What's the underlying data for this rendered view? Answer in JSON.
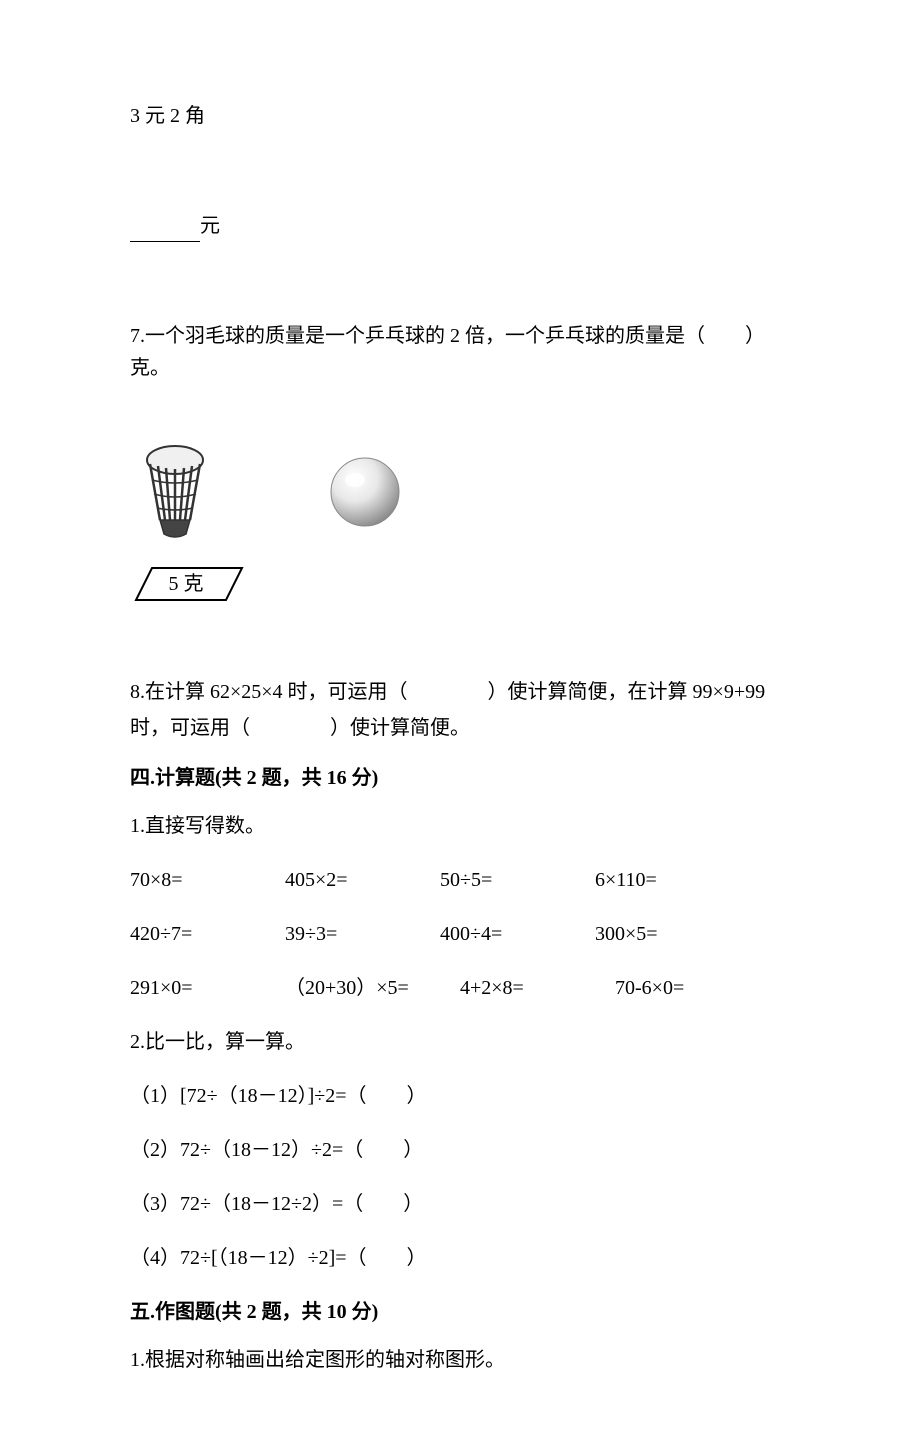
{
  "text": {
    "price_line": "3 元 2 角",
    "yuan_blank_suffix": "元",
    "q7": "7.一个羽毛球的质量是一个乒乓球的 2 倍，一个乒乓球的质量是（　　）克。",
    "weight_label": "5 克",
    "q8_line1": "8.在计算 62×25×4 时，可运用（　　　　）使计算简便，在计算 99×9+99",
    "q8_line2": "时，可运用（　　　　）使计算简便。",
    "sec4_heading": "四.计算题(共 2 题，共 16 分)",
    "q4_1": "1.直接写得数。",
    "q4_2": "2.比一比，算一算。",
    "q4_2_1": "（1）[72÷（18－12）]÷2=（　　）",
    "q4_2_2": "（2）72÷（18－12）÷2=（　　）",
    "q4_2_3": "（3）72÷（18－12÷2）=（　　）",
    "q4_2_4": "（4）72÷[（18－12）÷2]=（　　）",
    "sec5_heading": "五.作图题(共 2 题，共 10 分)",
    "q5_1": "1.根据对称轴画出给定图形的轴对称图形。"
  },
  "calc_rows": [
    [
      "70×8=",
      "405×2=",
      "50÷5=",
      "6×110="
    ],
    [
      "420÷7=",
      "39÷3=",
      "400÷4=",
      "300×5="
    ],
    [
      "291×0=",
      "（20+30）×5=",
      "4+2×8=",
      "70-6×0="
    ]
  ],
  "svg": {
    "shuttlecock_stroke": "#333333",
    "shuttlecock_fill": "#ffffff",
    "ball_light": "#f8f8f8",
    "ball_mid": "#d0d0d0",
    "ball_dark": "#909090",
    "label_stroke": "#000000"
  }
}
